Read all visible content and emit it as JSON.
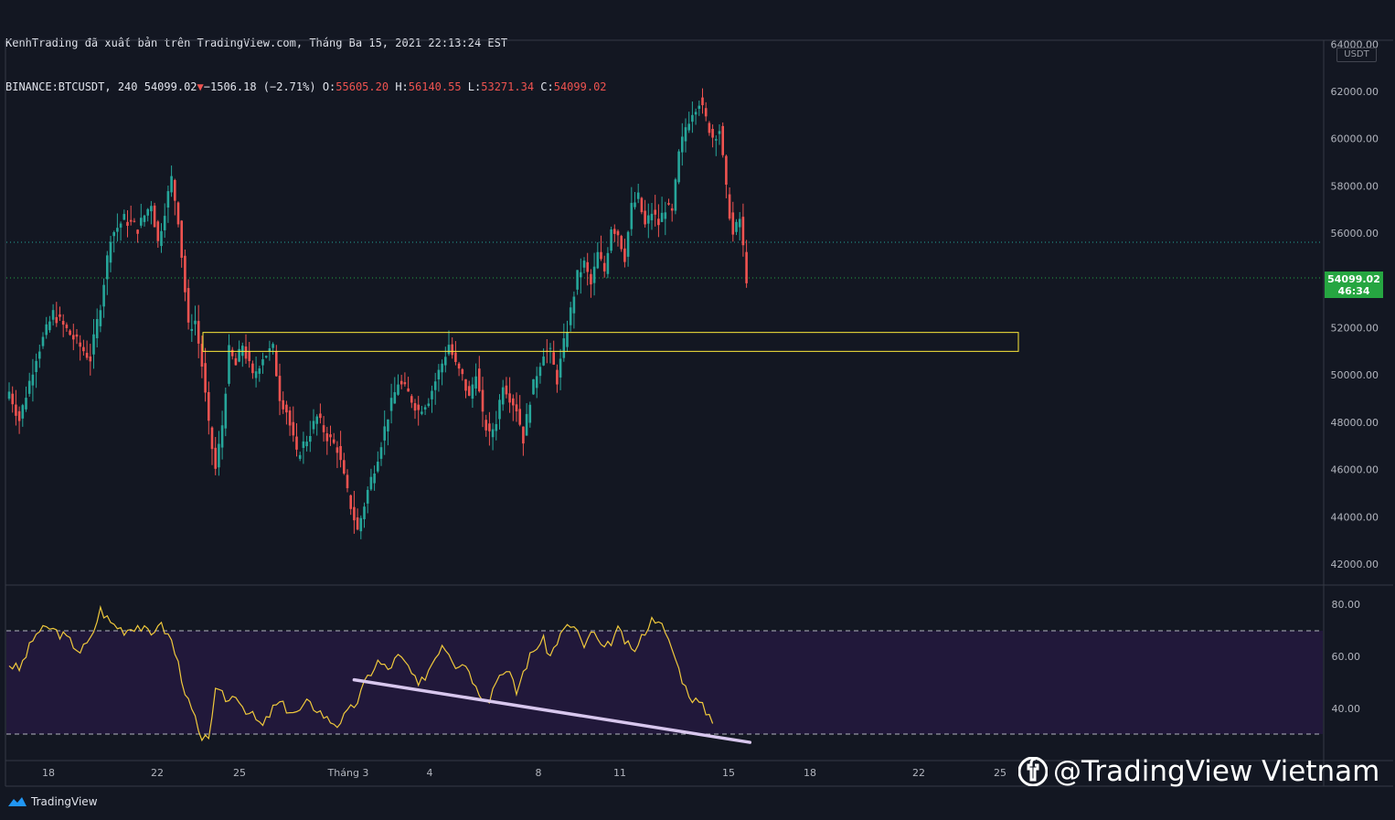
{
  "header": {
    "line1": "KenhTrading đã xuất bản trên TradingView.com, Tháng Ba 15, 2021 22:13:24 EST",
    "symbol": "BINANCE:BTCUSDT, 240",
    "last": "54099.02",
    "change": "−1506.18 (−2.71%)",
    "o_label": "O:",
    "o_val": "55605.20",
    "h_label": "H:",
    "h_val": "56140.55",
    "l_label": "L:",
    "l_val": "53271.34",
    "c_label": "C:",
    "c_val": "54099.02"
  },
  "price_tag": {
    "price": "54099.02",
    "countdown": "46:34",
    "color": "#26a641"
  },
  "currency_label": "USDT",
  "brand": {
    "footer": "TradingView",
    "watermark": "@TradingView Vietnam"
  },
  "colors": {
    "up": "#26a69a",
    "down": "#ef5350",
    "zone": "#ffeb3b",
    "rsi": "#f0c93c",
    "trend": "#d8c7ee",
    "rsi_band": "#21183a"
  },
  "chart_data": {
    "type": "candlestick",
    "price_axis": {
      "ticks": [
        "42000.00",
        "44000.00",
        "46000.00",
        "48000.00",
        "50000.00",
        "52000.00",
        "54000.00",
        "56000.00",
        "58000.00",
        "60000.00",
        "62000.00",
        "64000.00"
      ],
      "range": [
        41000,
        64200
      ]
    },
    "time_axis": {
      "ticks": [
        "18",
        "22",
        "25",
        "Tháng 3",
        "4",
        "8",
        "11",
        "15",
        "18",
        "22",
        "25"
      ]
    },
    "waypoints": [
      [
        0,
        49300
      ],
      [
        3,
        48100
      ],
      [
        8,
        50800
      ],
      [
        13,
        52600
      ],
      [
        17,
        51900
      ],
      [
        21,
        51200
      ],
      [
        24,
        50700
      ],
      [
        27,
        53000
      ],
      [
        30,
        55900
      ],
      [
        34,
        56600
      ],
      [
        38,
        56200
      ],
      [
        42,
        57300
      ],
      [
        44,
        55600
      ],
      [
        46,
        57000
      ],
      [
        48,
        58300
      ],
      [
        50,
        56600
      ],
      [
        53,
        52000
      ],
      [
        55,
        52300
      ],
      [
        57,
        50400
      ],
      [
        59,
        47800
      ],
      [
        61,
        46000
      ],
      [
        63,
        47900
      ],
      [
        65,
        51000
      ],
      [
        67,
        50400
      ],
      [
        69,
        51300
      ],
      [
        72,
        49900
      ],
      [
        75,
        50800
      ],
      [
        78,
        51100
      ],
      [
        80,
        49100
      ],
      [
        82,
        48500
      ],
      [
        85,
        46600
      ],
      [
        88,
        47300
      ],
      [
        91,
        48200
      ],
      [
        94,
        47400
      ],
      [
        97,
        46900
      ],
      [
        100,
        45000
      ],
      [
        103,
        43400
      ],
      [
        106,
        45100
      ],
      [
        109,
        46600
      ],
      [
        112,
        48300
      ],
      [
        115,
        49700
      ],
      [
        118,
        49200
      ],
      [
        121,
        48500
      ],
      [
        124,
        49000
      ],
      [
        128,
        50500
      ],
      [
        130,
        51300
      ],
      [
        132,
        50400
      ],
      [
        134,
        49900
      ],
      [
        136,
        49000
      ],
      [
        138,
        50200
      ],
      [
        140,
        48200
      ],
      [
        142,
        47400
      ],
      [
        144,
        48100
      ],
      [
        146,
        49700
      ],
      [
        148,
        49100
      ],
      [
        150,
        48600
      ],
      [
        152,
        47300
      ],
      [
        154,
        49000
      ],
      [
        156,
        50100
      ],
      [
        158,
        51000
      ],
      [
        160,
        50900
      ],
      [
        162,
        49800
      ],
      [
        164,
        51300
      ],
      [
        166,
        52700
      ],
      [
        168,
        54200
      ],
      [
        170,
        54700
      ],
      [
        172,
        53800
      ],
      [
        174,
        55100
      ],
      [
        176,
        54400
      ],
      [
        178,
        56300
      ],
      [
        180,
        56000
      ],
      [
        182,
        55000
      ],
      [
        184,
        57100
      ],
      [
        186,
        57500
      ],
      [
        188,
        56300
      ],
      [
        190,
        56900
      ],
      [
        192,
        56400
      ],
      [
        194,
        57100
      ],
      [
        196,
        56800
      ],
      [
        198,
        59300
      ],
      [
        200,
        60500
      ],
      [
        202,
        61200
      ],
      [
        204,
        61600
      ],
      [
        206,
        60800
      ],
      [
        208,
        60100
      ],
      [
        210,
        60400
      ],
      [
        212,
        57800
      ],
      [
        214,
        55900
      ],
      [
        216,
        56600
      ],
      [
        218,
        54099
      ]
    ],
    "rsi": {
      "levels": [
        30,
        70
      ],
      "ticks": [
        "40.00",
        "60.00",
        "80.00"
      ],
      "range": [
        23,
        84
      ],
      "waypoints": [
        [
          0,
          57
        ],
        [
          3,
          55
        ],
        [
          8,
          69
        ],
        [
          12,
          71
        ],
        [
          17,
          67
        ],
        [
          21,
          62
        ],
        [
          24,
          66
        ],
        [
          27,
          78
        ],
        [
          30,
          73
        ],
        [
          34,
          70
        ],
        [
          38,
          72
        ],
        [
          42,
          68
        ],
        [
          44,
          73
        ],
        [
          46,
          70
        ],
        [
          48,
          66
        ],
        [
          50,
          57
        ],
        [
          53,
          42
        ],
        [
          55,
          36
        ],
        [
          57,
          26
        ],
        [
          59,
          30
        ],
        [
          61,
          46
        ],
        [
          63,
          45
        ],
        [
          65,
          43
        ],
        [
          67,
          46
        ],
        [
          69,
          41
        ],
        [
          72,
          37
        ],
        [
          75,
          33
        ],
        [
          78,
          40
        ],
        [
          80,
          42
        ],
        [
          82,
          40
        ],
        [
          85,
          38
        ],
        [
          88,
          42
        ],
        [
          91,
          40
        ],
        [
          94,
          36
        ],
        [
          97,
          34
        ],
        [
          100,
          38
        ],
        [
          103,
          43
        ],
        [
          106,
          52
        ],
        [
          109,
          58
        ],
        [
          112,
          55
        ],
        [
          115,
          60
        ],
        [
          118,
          56
        ],
        [
          121,
          48
        ],
        [
          124,
          55
        ],
        [
          128,
          65
        ],
        [
          130,
          62
        ],
        [
          132,
          57
        ],
        [
          134,
          58
        ],
        [
          136,
          55
        ],
        [
          138,
          48
        ],
        [
          140,
          45
        ],
        [
          142,
          44
        ],
        [
          144,
          51
        ],
        [
          146,
          55
        ],
        [
          148,
          53
        ],
        [
          150,
          46
        ],
        [
          152,
          54
        ],
        [
          154,
          60
        ],
        [
          156,
          64
        ],
        [
          158,
          66
        ],
        [
          160,
          60
        ],
        [
          162,
          66
        ],
        [
          164,
          70
        ],
        [
          166,
          72
        ],
        [
          168,
          70
        ],
        [
          170,
          62
        ],
        [
          172,
          70
        ],
        [
          174,
          66
        ],
        [
          176,
          62
        ],
        [
          178,
          66
        ],
        [
          180,
          70
        ],
        [
          182,
          66
        ],
        [
          184,
          62
        ],
        [
          186,
          64
        ],
        [
          188,
          70
        ],
        [
          190,
          74
        ],
        [
          192,
          75
        ],
        [
          194,
          68
        ],
        [
          196,
          63
        ],
        [
          198,
          55
        ],
        [
          200,
          48
        ],
        [
          202,
          44
        ],
        [
          204,
          42
        ],
        [
          206,
          39
        ],
        [
          208,
          36
        ]
      ]
    },
    "zone": {
      "top": 51800,
      "bottom": 51000
    },
    "trendline": {
      "from": [
        102,
        51
      ],
      "to": [
        219,
        27
      ]
    }
  }
}
